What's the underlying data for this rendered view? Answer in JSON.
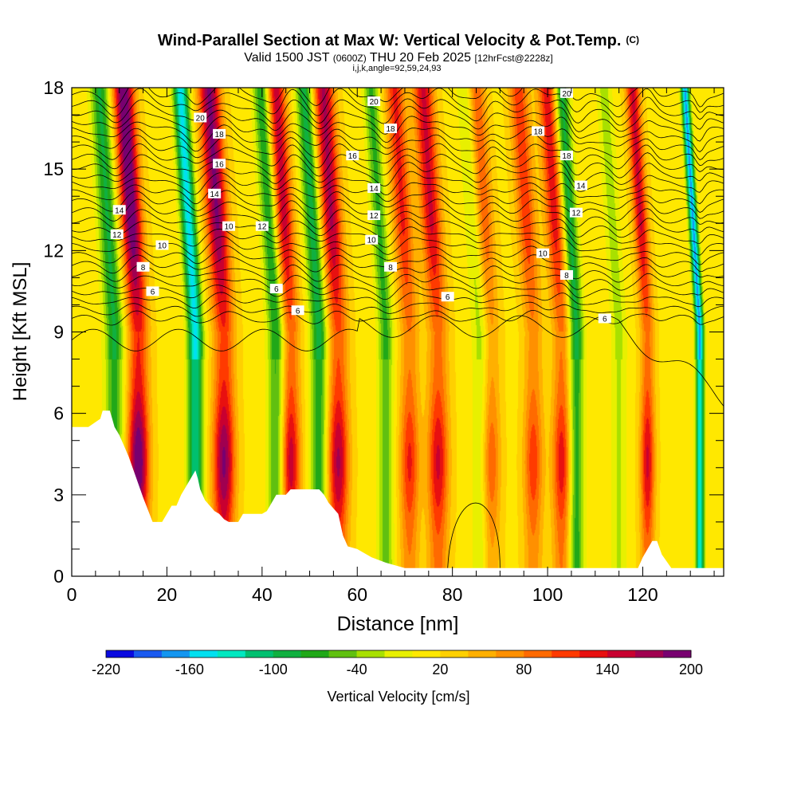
{
  "header": {
    "title": "Wind-Parallel Section at Max W: Vertical Velocity & Pot.Temp.",
    "copyright": "(C)",
    "subtitle_valid": "Valid 1500 JST",
    "subtitle_utc": "(0600Z)",
    "subtitle_date": "THU 20 Feb 2025",
    "subtitle_fcst": "[12hrFcst@2228z]",
    "indices": "i,j,k,angle=92,59,24,93"
  },
  "chart_data": {
    "type": "heatmap",
    "xlabel": "Distance [nm]",
    "ylabel": "Height [Kft MSL]",
    "xlim": [
      0,
      137
    ],
    "ylim": [
      0,
      18
    ],
    "xticks": [
      0,
      20,
      40,
      60,
      80,
      100,
      120
    ],
    "yticks": [
      0,
      3,
      6,
      9,
      12,
      15,
      18
    ],
    "colorbar": {
      "label": "Vertical Velocity [cm/s]",
      "min": -220,
      "max": 200,
      "step": 20,
      "tick_labels": [
        "-220",
        "-160",
        "-100",
        "-40",
        "20",
        "80",
        "140",
        "200"
      ],
      "tick_values": [
        -220,
        -160,
        -100,
        -40,
        20,
        80,
        140,
        200
      ],
      "colors": [
        "#0a0ae0",
        "#1a5af0",
        "#1496f0",
        "#00e0f0",
        "#00e8c0",
        "#00c070",
        "#10b040",
        "#20a818",
        "#60c010",
        "#a8e000",
        "#e8f000",
        "#ffe800",
        "#ffd000",
        "#ffb000",
        "#ff9000",
        "#ff6a00",
        "#ff3a00",
        "#e81010",
        "#c80030",
        "#a00050",
        "#780070"
      ]
    },
    "updraft_bands": [
      {
        "x": 14,
        "w": 2.2,
        "amp": 190
      },
      {
        "x": 32,
        "w": 2.3,
        "amp": 170
      },
      {
        "x": 46,
        "w": 2.0,
        "amp": 140
      },
      {
        "x": 56,
        "w": 2.2,
        "amp": 150
      },
      {
        "x": 71,
        "w": 2.0,
        "amp": 110
      },
      {
        "x": 77,
        "w": 2.2,
        "amp": 130
      },
      {
        "x": 88,
        "w": 2.0,
        "amp": 90
      },
      {
        "x": 97,
        "w": 2.0,
        "amp": 100
      },
      {
        "x": 103,
        "w": 2.0,
        "amp": 120
      },
      {
        "x": 121,
        "w": 1.5,
        "amp": 130
      }
    ],
    "downdraft_bands": [
      {
        "x": 9,
        "w": 2.0,
        "amp": -110
      },
      {
        "x": 26,
        "w": 1.6,
        "amp": -180
      },
      {
        "x": 43,
        "w": 1.8,
        "amp": -110
      },
      {
        "x": 52,
        "w": 1.8,
        "amp": -120
      },
      {
        "x": 66,
        "w": 1.6,
        "amp": -90
      },
      {
        "x": 86,
        "w": 1.8,
        "amp": -60
      },
      {
        "x": 106,
        "w": 1.6,
        "amp": -120
      },
      {
        "x": 115,
        "w": 1.6,
        "amp": -50
      },
      {
        "x": 132,
        "w": 0.9,
        "amp": -200
      }
    ],
    "terrain": {
      "x": [
        0,
        3.5,
        6,
        6.5,
        8,
        8.5,
        9,
        10,
        11,
        12,
        13,
        14,
        15,
        17,
        18,
        19,
        20,
        21,
        22,
        23,
        24,
        26,
        26.5,
        27,
        28,
        29,
        30,
        31,
        32,
        33,
        35,
        36,
        40,
        41,
        42,
        43,
        45,
        46,
        50,
        52,
        53,
        54,
        55,
        56,
        57,
        58,
        60,
        61,
        63,
        66,
        70,
        75,
        80,
        100,
        115,
        119,
        120,
        121,
        122,
        123,
        124,
        126,
        128,
        130,
        137
      ],
      "y": [
        5.5,
        5.5,
        5.8,
        6.1,
        6.1,
        5.8,
        5.5,
        5.2,
        4.8,
        4.4,
        3.9,
        3.4,
        2.9,
        2.0,
        2.0,
        2.0,
        2.3,
        2.6,
        2.6,
        3.0,
        3.3,
        3.9,
        3.6,
        3.2,
        2.8,
        2.6,
        2.4,
        2.3,
        2.1,
        2.0,
        2.0,
        2.3,
        2.3,
        2.4,
        2.7,
        3.0,
        3.0,
        3.2,
        3.2,
        3.2,
        3.0,
        2.7,
        2.5,
        2.3,
        1.5,
        1.1,
        1.0,
        0.9,
        0.7,
        0.5,
        0.3,
        0.3,
        0.3,
        0.3,
        0.3,
        0.3,
        0.7,
        1.0,
        1.3,
        1.3,
        0.8,
        0.3,
        0.3,
        0.3,
        0.3
      ]
    },
    "theta_contours": [
      {
        "label": "6",
        "base": 10.4,
        "label_x": 17
      },
      {
        "label": "8",
        "base": 11.4,
        "label_x": 15
      },
      {
        "label": "10",
        "base": 12.3,
        "label_x": 19
      },
      {
        "label": "12",
        "base": 12.8,
        "label_x": 9
      },
      {
        "label": "14",
        "base": 13.5,
        "label_x": 10
      },
      {
        "label": "16",
        "base": 15.2,
        "label_x": 31
      },
      {
        "label": "18",
        "base": 16.3,
        "label_x": 31
      },
      {
        "label": "20",
        "base": 16.9,
        "label_x": 27
      }
    ],
    "contour_labels": [
      {
        "text": "20",
        "x": 27,
        "y": 16.9
      },
      {
        "text": "18",
        "x": 31,
        "y": 16.3
      },
      {
        "text": "16",
        "x": 31,
        "y": 15.2
      },
      {
        "text": "14",
        "x": 30,
        "y": 14.1
      },
      {
        "text": "14",
        "x": 10,
        "y": 13.5
      },
      {
        "text": "12",
        "x": 9.5,
        "y": 12.6
      },
      {
        "text": "10",
        "x": 19,
        "y": 12.2
      },
      {
        "text": "10",
        "x": 33,
        "y": 12.9
      },
      {
        "text": "12",
        "x": 40,
        "y": 12.9
      },
      {
        "text": "8",
        "x": 15,
        "y": 11.4
      },
      {
        "text": "6",
        "x": 17,
        "y": 10.5
      },
      {
        "text": "6",
        "x": 43,
        "y": 10.6
      },
      {
        "text": "6",
        "x": 47.5,
        "y": 9.8
      },
      {
        "text": "20",
        "x": 63.5,
        "y": 17.5
      },
      {
        "text": "18",
        "x": 67,
        "y": 16.5
      },
      {
        "text": "16",
        "x": 59,
        "y": 15.5
      },
      {
        "text": "14",
        "x": 63.5,
        "y": 14.3
      },
      {
        "text": "12",
        "x": 63.5,
        "y": 13.3
      },
      {
        "text": "10",
        "x": 63,
        "y": 12.4
      },
      {
        "text": "8",
        "x": 67,
        "y": 11.4
      },
      {
        "text": "6",
        "x": 79,
        "y": 10.3
      },
      {
        "text": "20",
        "x": 104,
        "y": 17.8
      },
      {
        "text": "18",
        "x": 98,
        "y": 16.4
      },
      {
        "text": "18",
        "x": 104,
        "y": 15.5
      },
      {
        "text": "14",
        "x": 107,
        "y": 14.4
      },
      {
        "text": "12",
        "x": 106,
        "y": 13.4
      },
      {
        "text": "10",
        "x": 99,
        "y": 11.9
      },
      {
        "text": "8",
        "x": 104,
        "y": 11.1
      },
      {
        "text": "6",
        "x": 112,
        "y": 9.5
      }
    ]
  }
}
